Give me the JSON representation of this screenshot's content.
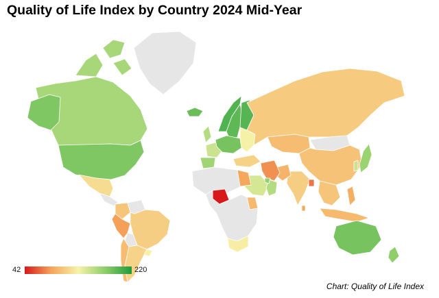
{
  "title": "Quality of Life Index by Country 2024 Mid-Year",
  "credit": "Chart: Quality of Life Index",
  "legend": {
    "min_label": "42",
    "max_label": "220",
    "min": 42,
    "max": 220
  },
  "colors": {
    "scale": [
      "#d7191c",
      "#f5a55a",
      "#f7f3a8",
      "#8fce6a",
      "#1f9b3a"
    ],
    "no_data": "#e6e6e6",
    "border": "#ffffff"
  },
  "chart_data": {
    "type": "choropleth",
    "title": "Quality of Life Index by Country 2024 Mid-Year",
    "value_range": [
      42,
      220
    ],
    "note": "Values are approximate readings of the colour scale.",
    "regions": [
      {
        "id": "canada",
        "label": "Canada",
        "value": 165
      },
      {
        "id": "canada-islands",
        "label": "Canadian Arctic Islands",
        "value": 165
      },
      {
        "id": "alaska",
        "label": "Alaska (USA)",
        "value": 182
      },
      {
        "id": "usa",
        "label": "United States",
        "value": 182
      },
      {
        "id": "greenland",
        "label": "Greenland",
        "value": null
      },
      {
        "id": "iceland",
        "label": "Iceland",
        "value": 190
      },
      {
        "id": "mexico",
        "label": "Mexico",
        "value": 118
      },
      {
        "id": "central-america",
        "label": "Central America",
        "value": null
      },
      {
        "id": "colombia",
        "label": "Colombia",
        "value": 105
      },
      {
        "id": "venezuela",
        "label": "Venezuela",
        "value": null
      },
      {
        "id": "peru",
        "label": "Peru",
        "value": 85
      },
      {
        "id": "brazil",
        "label": "Brazil",
        "value": 110
      },
      {
        "id": "bolivia",
        "label": "Bolivia",
        "value": null
      },
      {
        "id": "argentina",
        "label": "Argentina",
        "value": 113
      },
      {
        "id": "chile",
        "label": "Chile",
        "value": 100
      },
      {
        "id": "uruguay",
        "label": "Uruguay",
        "value": 130
      },
      {
        "id": "norway",
        "label": "Norway",
        "value": 200
      },
      {
        "id": "sweden",
        "label": "Sweden",
        "value": 195
      },
      {
        "id": "finland",
        "label": "Finland",
        "value": 198
      },
      {
        "id": "uk",
        "label": "United Kingdom",
        "value": 160
      },
      {
        "id": "france",
        "label": "France",
        "value": 150
      },
      {
        "id": "spain",
        "label": "Spain",
        "value": 168
      },
      {
        "id": "central-europe",
        "label": "Central Europe",
        "value": 185
      },
      {
        "id": "eastern-europe",
        "label": "Eastern Europe",
        "value": 132
      },
      {
        "id": "russia",
        "label": "Russia",
        "value": 108
      },
      {
        "id": "kazakhstan",
        "label": "Kazakhstan",
        "value": 100
      },
      {
        "id": "mongolia",
        "label": "Mongolia",
        "value": null
      },
      {
        "id": "china",
        "label": "China",
        "value": 103
      },
      {
        "id": "japan",
        "label": "Japan",
        "value": 170
      },
      {
        "id": "south-korea",
        "label": "South Korea",
        "value": 150
      },
      {
        "id": "india",
        "label": "India",
        "value": 110
      },
      {
        "id": "pakistan",
        "label": "Pakistan",
        "value": 95
      },
      {
        "id": "iran",
        "label": "Iran",
        "value": 80
      },
      {
        "id": "turkey",
        "label": "Turkey",
        "value": 112
      },
      {
        "id": "saudi-arabia",
        "label": "Saudi Arabia",
        "value": 145
      },
      {
        "id": "oman",
        "label": "Oman",
        "value": 160
      },
      {
        "id": "uae",
        "label": "United Arab Emirates",
        "value": 172
      },
      {
        "id": "bangladesh",
        "label": "Bangladesh",
        "value": 72
      },
      {
        "id": "southeast-asia",
        "label": "Southeast Asia",
        "value": 105
      },
      {
        "id": "philippines",
        "label": "Philippines",
        "value": 92
      },
      {
        "id": "indonesia",
        "label": "Indonesia",
        "value": 98
      },
      {
        "id": "sri-lanka",
        "label": "Sri Lanka",
        "value": 88
      },
      {
        "id": "north-africa",
        "label": "North Africa",
        "value": null
      },
      {
        "id": "egypt",
        "label": "Egypt",
        "value": 88
      },
      {
        "id": "nigeria",
        "label": "Nigeria",
        "value": 42
      },
      {
        "id": "kenya",
        "label": "Kenya",
        "value": 98
      },
      {
        "id": "central-africa",
        "label": "Central & Southern Africa",
        "value": null
      },
      {
        "id": "south-africa",
        "label": "South Africa",
        "value": 128
      },
      {
        "id": "australia",
        "label": "Australia",
        "value": 185
      },
      {
        "id": "new-zealand",
        "label": "New Zealand",
        "value": 175
      }
    ]
  }
}
